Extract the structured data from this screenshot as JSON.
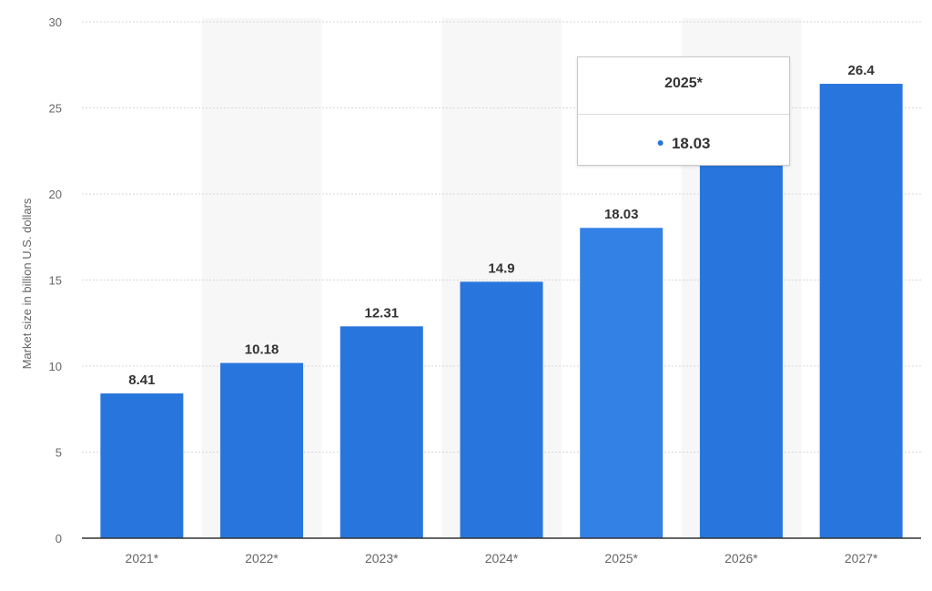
{
  "chart_data": {
    "type": "bar",
    "categories": [
      "2021*",
      "2022*",
      "2023*",
      "2024*",
      "2025*",
      "2026*",
      "2027*"
    ],
    "values": [
      8.41,
      10.18,
      12.31,
      14.9,
      18.03,
      21.87,
      26.4
    ],
    "value_labels": [
      "8.41",
      "10.18",
      "12.31",
      "14.9",
      "18.03",
      "",
      "26.4"
    ],
    "ylabel": "Market size in billion U.S. dollars",
    "xlabel": "",
    "ylim": [
      0,
      30
    ],
    "yticks": [
      0,
      5,
      10,
      15,
      20,
      25,
      30
    ],
    "grid": true,
    "legend": "none",
    "colors": {
      "bar": "#2876dd",
      "bar_highlight": "#3481e6",
      "grid": "#d7d7d7",
      "stripe": "#f7f7f7",
      "axis_text": "#666666",
      "label_text": "#333333"
    }
  },
  "tooltip": {
    "title": "2025*",
    "value": "18.03"
  }
}
